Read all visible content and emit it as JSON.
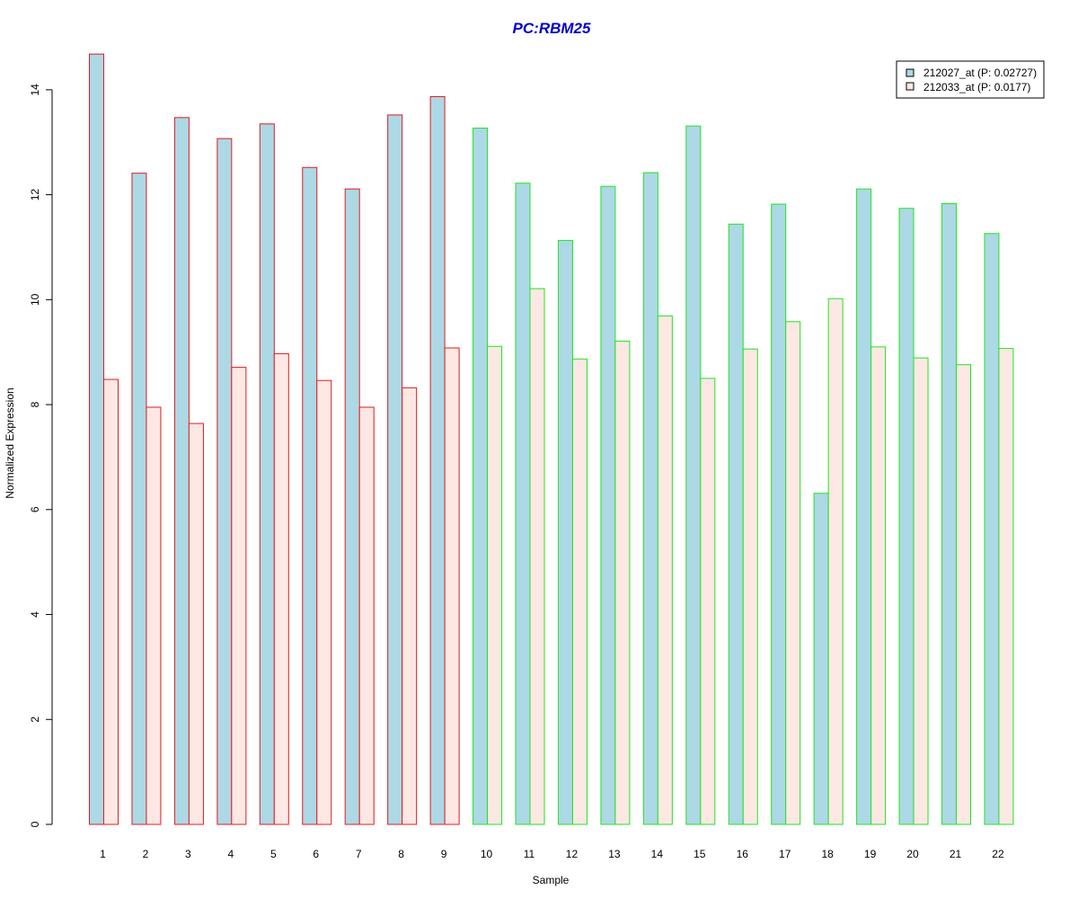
{
  "colors": {
    "title": "#0000cc",
    "series_fill": [
      "#add8e6",
      "#fde8e4"
    ],
    "group_border": [
      "#e31a1c",
      "#1ee61e"
    ]
  },
  "chart_data": {
    "type": "bar",
    "title": "PC:RBM25",
    "xlabel": "Sample",
    "ylabel": "Normalized Expression",
    "ylim": [
      0,
      14.7
    ],
    "yticks": [
      0,
      2,
      4,
      6,
      8,
      10,
      12,
      14
    ],
    "categories": [
      "1",
      "2",
      "3",
      "4",
      "5",
      "6",
      "7",
      "8",
      "9",
      "10",
      "11",
      "12",
      "13",
      "14",
      "15",
      "16",
      "17",
      "18",
      "19",
      "20",
      "21",
      "22"
    ],
    "group": [
      0,
      0,
      0,
      0,
      0,
      0,
      0,
      0,
      0,
      1,
      1,
      1,
      1,
      1,
      1,
      1,
      1,
      1,
      1,
      1,
      1,
      1
    ],
    "series": [
      {
        "name": "212027_at (P: 0.02727)",
        "values": [
          14.68,
          12.41,
          13.47,
          13.07,
          13.35,
          12.52,
          12.11,
          13.52,
          13.87,
          13.27,
          12.22,
          11.13,
          12.16,
          12.42,
          13.31,
          11.44,
          11.82,
          6.31,
          12.11,
          11.74,
          11.83,
          11.26
        ]
      },
      {
        "name": "212033_at (P: 0.0177)",
        "values": [
          8.48,
          7.95,
          7.64,
          8.71,
          8.97,
          8.46,
          7.95,
          8.32,
          9.08,
          9.11,
          10.21,
          8.87,
          9.21,
          9.69,
          8.5,
          9.06,
          9.58,
          10.02,
          9.1,
          8.89,
          8.76,
          9.07
        ]
      }
    ],
    "legend": "top-right",
    "grid": false
  }
}
